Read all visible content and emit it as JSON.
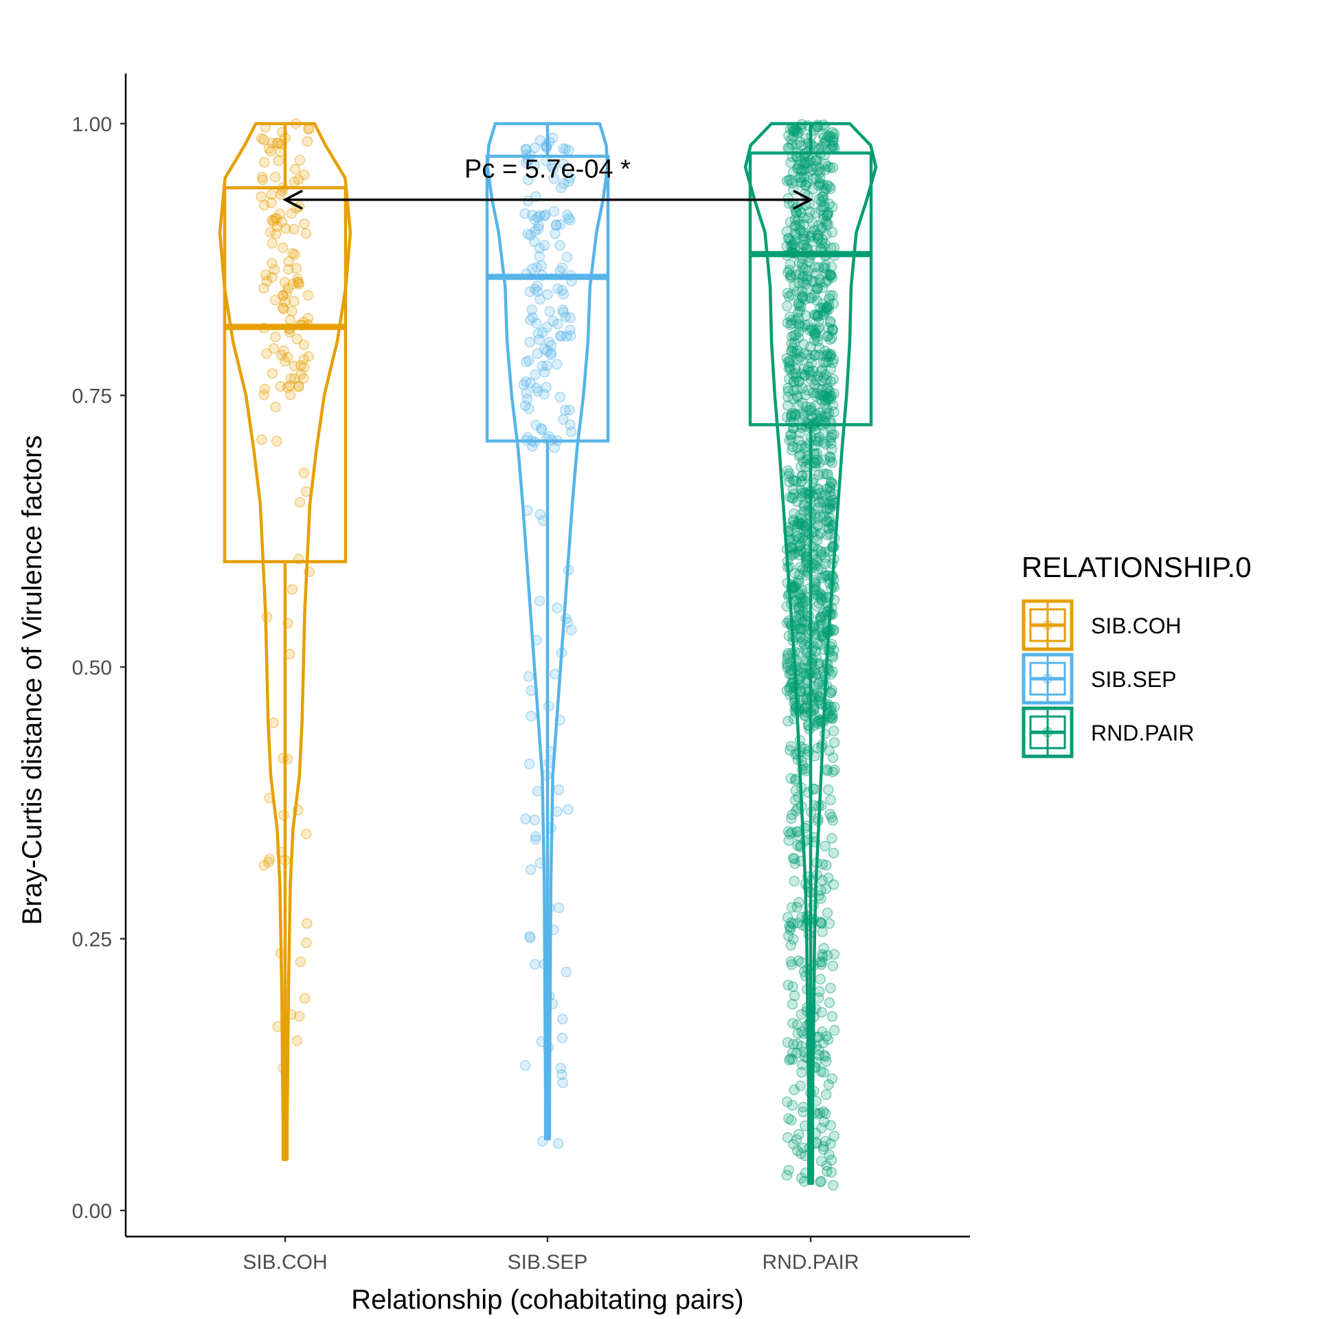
{
  "chart_data": {
    "type": "violin",
    "xlabel": "Relationship (cohabitating pairs)",
    "ylabel": "Bray-Curtis distance of Virulence factors",
    "categories": [
      "SIB.COH",
      "SIB.SEP",
      "RND.PAIR"
    ],
    "ylim": [
      0.0,
      1.05
    ],
    "yticks": [
      0.0,
      0.25,
      0.5,
      0.75,
      1.0
    ],
    "ytick_labels": [
      "0.00",
      "0.25",
      "0.50",
      "0.75",
      "1.00"
    ],
    "legend": {
      "title": "RELATIONSHIP.0",
      "position": "right",
      "items": [
        "SIB.COH",
        "SIB.SEP",
        "RND.PAIR"
      ]
    },
    "colors": {
      "SIB.COH": "#E69F00",
      "SIB.SEP": "#56B4E9",
      "RND.PAIR": "#009E73"
    },
    "boxplots": [
      {
        "group": "SIB.COH",
        "q1": 0.597,
        "median": 0.813,
        "q3": 0.941
      },
      {
        "group": "SIB.SEP",
        "q1": 0.708,
        "median": 0.859,
        "q3": 0.97
      },
      {
        "group": "RND.PAIR",
        "q1": 0.723,
        "median": 0.88,
        "q3": 0.973
      }
    ],
    "violins": [
      {
        "group": "SIB.COH",
        "ymin": 0.047,
        "ymax": 1.0,
        "profile": [
          [
            0.047,
            0.03
          ],
          [
            0.08,
            0.03
          ],
          [
            0.13,
            0.04
          ],
          [
            0.2,
            0.05
          ],
          [
            0.3,
            0.08
          ],
          [
            0.35,
            0.12
          ],
          [
            0.4,
            0.22
          ],
          [
            0.45,
            0.26
          ],
          [
            0.5,
            0.28
          ],
          [
            0.55,
            0.3
          ],
          [
            0.6,
            0.34
          ],
          [
            0.65,
            0.38
          ],
          [
            0.7,
            0.48
          ],
          [
            0.75,
            0.6
          ],
          [
            0.8,
            0.8
          ],
          [
            0.85,
            0.93
          ],
          [
            0.9,
            1.0
          ],
          [
            0.95,
            0.92
          ],
          [
            0.98,
            0.62
          ],
          [
            1.0,
            0.45
          ]
        ]
      },
      {
        "group": "SIB.SEP",
        "ymin": 0.066,
        "ymax": 1.0,
        "profile": [
          [
            0.066,
            0.03
          ],
          [
            0.1,
            0.03
          ],
          [
            0.2,
            0.04
          ],
          [
            0.3,
            0.05
          ],
          [
            0.4,
            0.08
          ],
          [
            0.45,
            0.14
          ],
          [
            0.5,
            0.2
          ],
          [
            0.55,
            0.26
          ],
          [
            0.6,
            0.32
          ],
          [
            0.65,
            0.38
          ],
          [
            0.7,
            0.45
          ],
          [
            0.75,
            0.55
          ],
          [
            0.8,
            0.62
          ],
          [
            0.85,
            0.65
          ],
          [
            0.9,
            0.75
          ],
          [
            0.93,
            0.85
          ],
          [
            0.96,
            0.92
          ],
          [
            0.98,
            0.9
          ],
          [
            1.0,
            0.8
          ]
        ]
      },
      {
        "group": "RND.PAIR",
        "ymin": 0.025,
        "ymax": 1.0,
        "profile": [
          [
            0.025,
            0.03
          ],
          [
            0.1,
            0.03
          ],
          [
            0.15,
            0.04
          ],
          [
            0.2,
            0.05
          ],
          [
            0.25,
            0.06
          ],
          [
            0.3,
            0.08
          ],
          [
            0.35,
            0.12
          ],
          [
            0.4,
            0.16
          ],
          [
            0.45,
            0.2
          ],
          [
            0.5,
            0.24
          ],
          [
            0.55,
            0.3
          ],
          [
            0.6,
            0.36
          ],
          [
            0.65,
            0.42
          ],
          [
            0.7,
            0.48
          ],
          [
            0.75,
            0.55
          ],
          [
            0.8,
            0.6
          ],
          [
            0.85,
            0.62
          ],
          [
            0.9,
            0.7
          ],
          [
            0.93,
            0.86
          ],
          [
            0.96,
            1.0
          ],
          [
            0.98,
            0.92
          ],
          [
            1.0,
            0.6
          ]
        ]
      }
    ],
    "points": [
      {
        "group": "SIB.COH",
        "n": 150,
        "dense": [
          [
            0.75,
            1.0
          ]
        ],
        "sparse": [
          [
            0.13,
            0.75
          ]
        ]
      },
      {
        "group": "SIB.SEP",
        "n": 190,
        "dense": [
          [
            0.7,
            1.0
          ]
        ],
        "sparse": [
          [
            0.06,
            0.7
          ]
        ]
      },
      {
        "group": "RND.PAIR",
        "n": 1300,
        "dense": [
          [
            0.45,
            1.0
          ]
        ],
        "sparse": [
          [
            0.02,
            0.45
          ]
        ]
      }
    ],
    "annotations": [
      {
        "text": "Pc = 5.7e-04 *",
        "from": "SIB.COH",
        "to": "RND.PAIR",
        "y": 0.93
      }
    ],
    "grid": false
  }
}
